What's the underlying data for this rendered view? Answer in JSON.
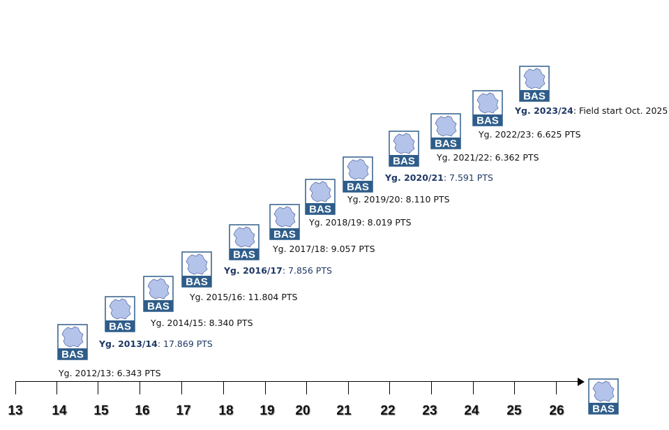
{
  "logo_text": "BAS",
  "colors": {
    "logo_border": "#2f5d8a",
    "logo_band": "#2f5d8a",
    "map_fill": "#b4c3ea",
    "map_stroke": "#5a6fa8",
    "highlight_text": "#1f3864"
  },
  "cohorts": [
    {
      "yg": "Yg. 2012/13",
      "value": ": 6.343 PTS"
    },
    {
      "yg": "Yg. 2013/14",
      "value": ": 17.869 PTS"
    },
    {
      "yg": "Yg. 2014/15",
      "value": ": 8.340 PTS"
    },
    {
      "yg": "Yg. 2015/16",
      "value": ": 11.804 PTS"
    },
    {
      "yg": "Yg. 2016/17",
      "value": ": 7.856 PTS"
    },
    {
      "yg": "Yg. 2017/18",
      "value": ": 9.057 PTS"
    },
    {
      "yg": "Yg. 2018/19",
      "value": ": 8.019 PTS"
    },
    {
      "yg": "Yg. 2019/20",
      "value": ": 8.110 PTS"
    },
    {
      "yg": "Yg. 2020/21",
      "value": ": 7.591 PTS"
    },
    {
      "yg": "Yg. 2021/22",
      "value": ": 6.362 PTS"
    },
    {
      "yg": "Yg. 2022/23",
      "value": ": 6.625 PTS"
    },
    {
      "yg": "Yg. 2023/24",
      "value": ": Field start Oct. 2025"
    }
  ],
  "axis": {
    "ticks": [
      "13",
      "14",
      "15",
      "16",
      "17",
      "18",
      "19",
      "20",
      "21",
      "22",
      "23",
      "24",
      "25",
      "26"
    ]
  }
}
